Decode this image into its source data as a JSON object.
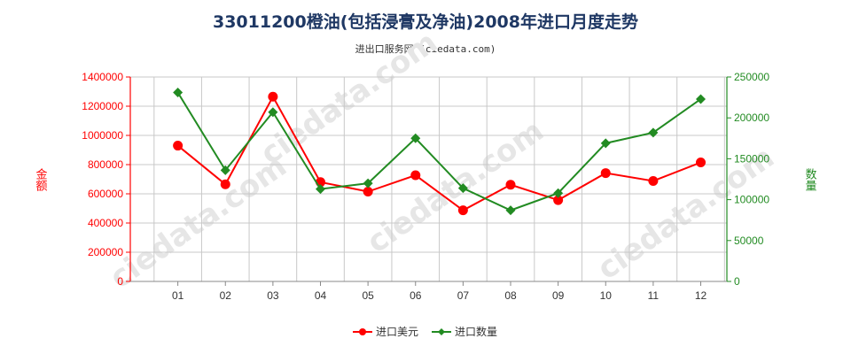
{
  "title": "33011200橙油(包括浸膏及净油)2008年进口月度走势",
  "subtitle": "进出口服务网 (ciedata.com)",
  "watermark": "ciedata.com",
  "colors": {
    "left_series": "#ff0000",
    "right_series": "#228b22",
    "left_axis": "#ff0000",
    "right_axis": "#228b22",
    "grid": "#c8c8c8",
    "title": "#1f3864"
  },
  "chart_data": {
    "type": "line",
    "categories": [
      "01",
      "02",
      "03",
      "04",
      "05",
      "06",
      "07",
      "08",
      "09",
      "10",
      "11",
      "12"
    ],
    "y_left_label": "金额",
    "y_right_label": "数量",
    "y_left_ticks": [
      "0",
      "200000",
      "400000",
      "600000",
      "800000",
      "1000000",
      "1200000",
      "1400000"
    ],
    "y_right_ticks": [
      "0",
      "50000",
      "100000",
      "150000",
      "200000",
      "250000"
    ],
    "y_left_range": [
      0,
      1400000
    ],
    "y_right_range": [
      0,
      250000
    ],
    "grid": true,
    "legend_position": "bottom",
    "series": [
      {
        "name": "进口美元",
        "axis": "left",
        "marker": "circle",
        "values": [
          930000,
          665000,
          1265000,
          680000,
          615000,
          727000,
          487000,
          662000,
          557000,
          742000,
          688000,
          815000
        ]
      },
      {
        "name": "进口数量",
        "axis": "right",
        "marker": "diamond",
        "values": [
          231000,
          136000,
          207000,
          113000,
          120000,
          175000,
          114000,
          87000,
          108000,
          169000,
          182000,
          223000
        ]
      }
    ]
  }
}
